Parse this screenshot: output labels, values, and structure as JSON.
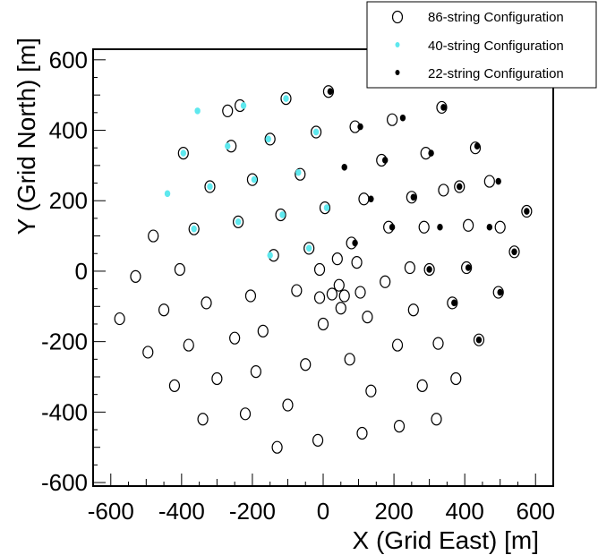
{
  "chart_data": {
    "type": "scatter",
    "title": "",
    "xlabel": "X (Grid East) [m]",
    "ylabel": "Y (Grid North) [m]",
    "xlim": [
      -650,
      650
    ],
    "ylim": [
      -610,
      630
    ],
    "xticks": [
      -600,
      -400,
      -200,
      0,
      200,
      400,
      600
    ],
    "yticks": [
      -600,
      -400,
      -200,
      0,
      200,
      400,
      600
    ],
    "legend_position": "top-right",
    "colors": {
      "cyan": "#5ee8ee",
      "black": "#000000"
    },
    "series": [
      {
        "name": "86-string Configuration",
        "marker": "open-circle",
        "x": [
          -575,
          -530,
          -495,
          -480,
          -450,
          -420,
          -405,
          -395,
          -380,
          -365,
          -340,
          -330,
          -320,
          -300,
          -270,
          -260,
          -250,
          -240,
          -235,
          -220,
          -205,
          -200,
          -190,
          -170,
          -150,
          -140,
          -130,
          -120,
          -105,
          -100,
          -75,
          -65,
          -50,
          -40,
          -20,
          -15,
          -10,
          -10,
          0,
          5,
          15,
          25,
          40,
          45,
          50,
          60,
          75,
          80,
          90,
          95,
          105,
          110,
          115,
          125,
          135,
          165,
          175,
          185,
          195,
          210,
          215,
          245,
          250,
          255,
          280,
          285,
          290,
          300,
          320,
          325,
          335,
          340,
          365,
          375,
          385,
          405,
          410,
          430,
          440,
          470,
          495,
          500,
          540,
          575
        ],
        "y": [
          -135,
          -15,
          -230,
          100,
          -110,
          -325,
          5,
          335,
          -210,
          120,
          -420,
          -90,
          240,
          -305,
          455,
          355,
          -190,
          140,
          470,
          -405,
          -70,
          260,
          -285,
          -170,
          375,
          45,
          -500,
          160,
          490,
          -380,
          -55,
          275,
          -265,
          65,
          395,
          -480,
          5,
          -75,
          -150,
          180,
          510,
          -65,
          35,
          -40,
          -105,
          -70,
          -250,
          80,
          410,
          25,
          -60,
          -460,
          205,
          -130,
          -340,
          315,
          -30,
          125,
          430,
          -210,
          -440,
          10,
          210,
          -110,
          -325,
          125,
          335,
          5,
          -420,
          -205,
          465,
          230,
          -90,
          -305,
          240,
          10,
          130,
          350,
          -195,
          255,
          -60,
          125,
          55,
          170
        ]
      },
      {
        "name": "40-string Configuration",
        "marker": "cyan-dot",
        "x": [
          -440,
          -395,
          -365,
          -355,
          -320,
          -270,
          -240,
          -225,
          -195,
          -150,
          -155,
          -115,
          -105,
          -70,
          -40,
          -20,
          10
        ],
        "y": [
          220,
          335,
          120,
          455,
          240,
          355,
          140,
          470,
          260,
          45,
          375,
          160,
          490,
          280,
          65,
          395,
          180
        ]
      },
      {
        "name": "22-string Configuration",
        "marker": "black-dot",
        "x": [
          20,
          60,
          90,
          105,
          135,
          175,
          195,
          225,
          255,
          300,
          305,
          330,
          340,
          370,
          385,
          410,
          435,
          440,
          470,
          495,
          500,
          540,
          575
        ],
        "y": [
          510,
          295,
          80,
          410,
          205,
          315,
          125,
          435,
          210,
          5,
          335,
          125,
          465,
          -90,
          240,
          10,
          355,
          -195,
          125,
          255,
          -60,
          55,
          170
        ]
      }
    ]
  }
}
